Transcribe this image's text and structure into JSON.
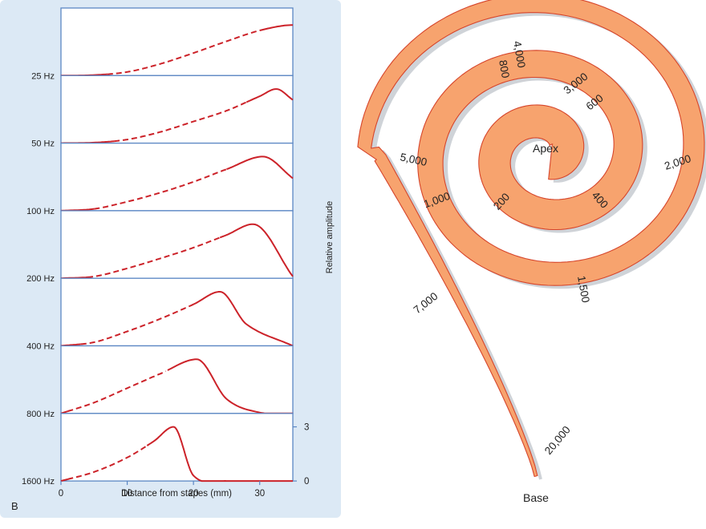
{
  "panel_label": "B",
  "chart_data": {
    "type": "line",
    "title": "",
    "xlabel": "Distance from stapes (mm)",
    "ylabel": "Relative amplitude",
    "xlim": [
      0,
      35
    ],
    "x_ticks": [
      0,
      10,
      20,
      30
    ],
    "y_ticks": [
      0,
      3
    ],
    "grid": false,
    "legend": "none",
    "line_color": "#cc2229",
    "panel_background": "#dce9f5",
    "series": [
      {
        "name": "25 Hz",
        "peak_x": 35,
        "peak_y": 2.8,
        "dash_from": 7,
        "dash_to": 30,
        "x": [
          0,
          5,
          10,
          15,
          20,
          25,
          30,
          35
        ],
        "y": [
          0,
          0.03,
          0.2,
          0.65,
          1.25,
          1.9,
          2.5,
          2.8
        ]
      },
      {
        "name": "50 Hz",
        "peak_x": 32.5,
        "peak_y": 3.0,
        "dash_from": 8,
        "dash_to": 28,
        "x": [
          0,
          5,
          10,
          15,
          20,
          25,
          30,
          32.5,
          35
        ],
        "y": [
          0,
          0.03,
          0.2,
          0.62,
          1.2,
          1.8,
          2.6,
          3.0,
          2.4
        ]
      },
      {
        "name": "100 Hz",
        "peak_x": 30.5,
        "peak_y": 3.0,
        "dash_from": 5,
        "dash_to": 25,
        "x": [
          0,
          5,
          10,
          15,
          20,
          25,
          30.5,
          35
        ],
        "y": [
          0,
          0.1,
          0.5,
          1.0,
          1.6,
          2.3,
          3.0,
          1.8
        ]
      },
      {
        "name": "200 Hz",
        "peak_x": 29,
        "peak_y": 3.0,
        "dash_from": 4,
        "dash_to": 24,
        "x": [
          0,
          5,
          10,
          15,
          20,
          25,
          29,
          35
        ],
        "y": [
          0,
          0.1,
          0.55,
          1.1,
          1.7,
          2.4,
          3.0,
          0.1
        ]
      },
      {
        "name": "400 Hz",
        "peak_x": 24,
        "peak_y": 3.0,
        "dash_from": 3,
        "dash_to": 20,
        "x": [
          0,
          5,
          10,
          15,
          20,
          24,
          28,
          35
        ],
        "y": [
          0,
          0.2,
          0.8,
          1.5,
          2.3,
          3.0,
          1.2,
          0
        ]
      },
      {
        "name": "800 Hz",
        "peak_x": 20.5,
        "peak_y": 3.0,
        "dash_from": 1,
        "dash_to": 16,
        "x": [
          0,
          5,
          10,
          15,
          20.5,
          25,
          30,
          35
        ],
        "y": [
          0,
          0.6,
          1.4,
          2.2,
          3.0,
          0.8,
          0.05,
          0
        ]
      },
      {
        "name": "1600 Hz",
        "peak_x": 17,
        "peak_y": 3.0,
        "dash_from": 1,
        "dash_to": 13,
        "x": [
          0,
          5,
          10,
          14,
          17,
          20,
          25,
          35
        ],
        "y": [
          0,
          0.5,
          1.3,
          2.2,
          3.0,
          0.3,
          0,
          0
        ]
      }
    ]
  },
  "cochlea": {
    "apex_label": "Apex",
    "base_label": "Base",
    "fill_color": "#f7a36e",
    "edge_color": "#d6452b",
    "shadow_color": "#cfd3d8",
    "frequency_labels": [
      "20,000",
      "7,000",
      "5,000",
      "4,000",
      "3,000",
      "2,000",
      "1,500",
      "1,000",
      "800",
      "600",
      "400",
      "200"
    ]
  }
}
